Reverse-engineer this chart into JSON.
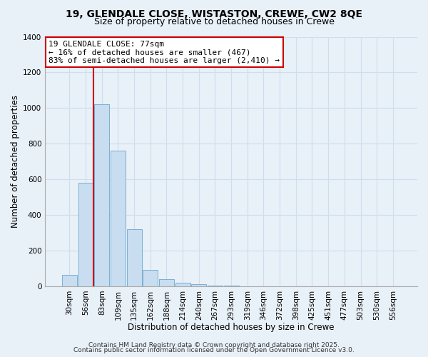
{
  "title_line1": "19, GLENDALE CLOSE, WISTASTON, CREWE, CW2 8QE",
  "title_line2": "Size of property relative to detached houses in Crewe",
  "xlabel": "Distribution of detached houses by size in Crewe",
  "ylabel": "Number of detached properties",
  "bin_labels": [
    "30sqm",
    "56sqm",
    "83sqm",
    "109sqm",
    "135sqm",
    "162sqm",
    "188sqm",
    "214sqm",
    "240sqm",
    "267sqm",
    "293sqm",
    "319sqm",
    "346sqm",
    "372sqm",
    "398sqm",
    "425sqm",
    "451sqm",
    "477sqm",
    "503sqm",
    "530sqm",
    "556sqm"
  ],
  "bar_values": [
    65,
    580,
    1020,
    760,
    320,
    90,
    40,
    20,
    10,
    5,
    2,
    0,
    0,
    0,
    0,
    0,
    0,
    0,
    0,
    0,
    0
  ],
  "bar_color": "#c8ddf0",
  "bar_edge_color": "#7bafd4",
  "grid_color": "#d0dded",
  "background_color": "#e8f0f8",
  "red_line_x": 1.5,
  "red_line_color": "#cc0000",
  "annotation_title": "19 GLENDALE CLOSE: 77sqm",
  "annotation_line1": "← 16% of detached houses are smaller (467)",
  "annotation_line2": "83% of semi-detached houses are larger (2,410) →",
  "annotation_box_color": "#ffffff",
  "annotation_border_color": "#cc0000",
  "ylim": [
    0,
    1400
  ],
  "yticks": [
    0,
    200,
    400,
    600,
    800,
    1000,
    1200,
    1400
  ],
  "footer_line1": "Contains HM Land Registry data © Crown copyright and database right 2025.",
  "footer_line2": "Contains public sector information licensed under the Open Government Licence v3.0.",
  "title_fontsize": 10,
  "subtitle_fontsize": 9,
  "axis_label_fontsize": 8.5,
  "tick_fontsize": 7.5,
  "annotation_fontsize": 8,
  "footer_fontsize": 6.5
}
